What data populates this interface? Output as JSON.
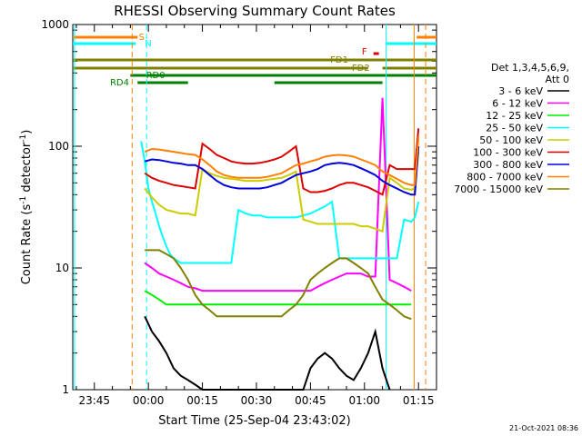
{
  "chart_data": {
    "type": "line",
    "title": "RHESSI Observing Summary Count Rates",
    "xlabel": "Start Time (25-Sep-04 23:43:02)",
    "ylabel": "Count Rate (s",
    "ylabel_exp": "-1",
    "ylabel_tail": " detector",
    "ylabel_exp2": "-1",
    "ylabel_close": ")",
    "yscale": "log",
    "ylim": [
      1,
      1000
    ],
    "xlim_minutes": [
      -6,
      95
    ],
    "x_ticks": [
      {
        "m": 0,
        "label": "23:45"
      },
      {
        "m": 15,
        "label": "00:00"
      },
      {
        "m": 30,
        "label": "00:15"
      },
      {
        "m": 45,
        "label": "00:30"
      },
      {
        "m": 60,
        "label": "00:45"
      },
      {
        "m": 75,
        "label": "01:00"
      },
      {
        "m": 90,
        "label": "01:15"
      }
    ],
    "y_ticks": [
      {
        "v": 1,
        "label": "1"
      },
      {
        "v": 10,
        "label": "10"
      },
      {
        "v": 100,
        "label": "100"
      },
      {
        "v": 1000,
        "label": "1000"
      }
    ],
    "legend_header1": "Det 1,3,4,5,6,9,",
    "legend_header2": "Att 0",
    "series": [
      {
        "name": "3 - 6 keV",
        "color": "#000000",
        "x": [
          14,
          16,
          18,
          20,
          22,
          24,
          26,
          28,
          30,
          32,
          34,
          36,
          38,
          40,
          42,
          44,
          46,
          48,
          50,
          52,
          54,
          56,
          58,
          60,
          62,
          64,
          66,
          68,
          70,
          72,
          74,
          76,
          78,
          80,
          82
        ],
        "y": [
          4,
          3,
          2.5,
          2,
          1.5,
          1.3,
          1.2,
          1.1,
          1,
          1,
          1,
          1,
          1,
          1,
          1,
          1,
          1,
          1,
          1,
          1,
          1,
          1,
          1,
          1.5,
          1.8,
          2,
          1.8,
          1.5,
          1.3,
          1.2,
          1.5,
          2,
          3,
          1.5,
          1
        ]
      },
      {
        "name": "6 - 12 keV",
        "color": "#ff00ff",
        "x": [
          14,
          16,
          18,
          20,
          22,
          24,
          26,
          28,
          30,
          32,
          34,
          36,
          38,
          40,
          42,
          44,
          46,
          48,
          50,
          52,
          54,
          56,
          58,
          60,
          62,
          64,
          66,
          68,
          70,
          72,
          74,
          76,
          78,
          80,
          82,
          84,
          86,
          88
        ],
        "y": [
          11,
          10,
          9,
          8.5,
          8,
          7.5,
          7,
          6.8,
          6.5,
          6.5,
          6.5,
          6.5,
          6.5,
          6.5,
          6.5,
          6.5,
          6.5,
          6.5,
          6.5,
          6.5,
          6.5,
          6.5,
          6.5,
          6.5,
          7,
          7.5,
          8,
          8.5,
          9,
          9,
          9,
          8.5,
          8.5,
          250,
          8,
          7.5,
          7,
          6.5
        ]
      },
      {
        "name": "12 - 25 keV",
        "color": "#00ee00",
        "x": [
          14,
          16,
          18,
          20,
          22,
          24,
          26,
          28,
          30,
          32,
          34,
          36,
          38,
          40,
          42,
          44,
          46,
          48,
          50,
          52,
          54,
          56,
          58,
          60,
          62,
          64,
          66,
          68,
          70,
          72,
          74,
          76,
          78,
          80,
          82,
          84,
          86,
          88
        ],
        "y": [
          6.5,
          6,
          5.5,
          5,
          5,
          5,
          5,
          5,
          5,
          5,
          5,
          5,
          5,
          5,
          5,
          5,
          5,
          5,
          5,
          5,
          5,
          5,
          5,
          5,
          5,
          5,
          5,
          5,
          5,
          5,
          5,
          5,
          5,
          5,
          5,
          5,
          5,
          5
        ]
      },
      {
        "name": "25 - 50 keV",
        "color": "#00ffff",
        "x": [
          13,
          14,
          15,
          16,
          17,
          18,
          19,
          20,
          21,
          22,
          24,
          26,
          28,
          30,
          32,
          34,
          36,
          38,
          40,
          42,
          44,
          46,
          48,
          50,
          52,
          54,
          56,
          58,
          60,
          62,
          64,
          66,
          68,
          70,
          72,
          74,
          76,
          78,
          80,
          82,
          84,
          86,
          88,
          89,
          90
        ],
        "y": [
          110,
          75,
          45,
          35,
          28,
          22,
          18,
          15,
          13,
          12,
          11,
          11,
          11,
          11,
          11,
          11,
          11,
          11,
          30,
          28,
          27,
          27,
          26,
          26,
          26,
          26,
          26,
          27,
          28,
          30,
          32,
          35,
          12,
          12,
          12,
          12,
          12,
          12,
          12,
          12,
          12,
          25,
          24,
          26,
          35
        ]
      },
      {
        "name": "50 - 100 keV",
        "color": "#cccc00",
        "x": [
          14,
          16,
          18,
          20,
          22,
          24,
          26,
          28,
          30,
          32,
          34,
          36,
          38,
          40,
          42,
          44,
          46,
          48,
          50,
          52,
          54,
          56,
          58,
          60,
          62,
          64,
          66,
          68,
          70,
          72,
          74,
          76,
          78,
          80,
          82,
          84,
          86,
          88,
          89,
          90
        ],
        "y": [
          45,
          38,
          33,
          30,
          29,
          28,
          28,
          27,
          65,
          60,
          57,
          55,
          54,
          53,
          52,
          52,
          52,
          53,
          54,
          55,
          58,
          62,
          25,
          24,
          23,
          23,
          23,
          23,
          23,
          23,
          22,
          22,
          21,
          20,
          55,
          50,
          45,
          44,
          45,
          90
        ]
      },
      {
        "name": "100 - 300 keV",
        "color": "#dd0000",
        "x": [
          14,
          16,
          18,
          20,
          22,
          24,
          26,
          28,
          30,
          32,
          34,
          36,
          38,
          40,
          42,
          44,
          46,
          48,
          50,
          52,
          54,
          56,
          58,
          60,
          62,
          64,
          66,
          68,
          70,
          72,
          74,
          76,
          78,
          80,
          82,
          84,
          86,
          88,
          89,
          90
        ],
        "y": [
          60,
          55,
          52,
          50,
          48,
          47,
          46,
          45,
          105,
          95,
          85,
          80,
          75,
          73,
          72,
          72,
          73,
          75,
          78,
          82,
          90,
          100,
          45,
          42,
          42,
          43,
          45,
          48,
          50,
          50,
          48,
          46,
          43,
          40,
          70,
          65,
          65,
          65,
          65,
          140
        ]
      },
      {
        "name": "300 - 800 keV",
        "color": "#0000dd",
        "x": [
          14,
          16,
          18,
          20,
          22,
          24,
          26,
          28,
          30,
          32,
          34,
          36,
          38,
          40,
          42,
          44,
          46,
          48,
          50,
          52,
          54,
          56,
          58,
          60,
          62,
          64,
          66,
          68,
          70,
          72,
          74,
          76,
          78,
          80,
          82,
          84,
          86,
          88,
          89,
          90
        ],
        "y": [
          75,
          78,
          77,
          75,
          73,
          72,
          70,
          70,
          65,
          58,
          52,
          48,
          46,
          45,
          45,
          45,
          45,
          46,
          48,
          50,
          54,
          58,
          60,
          62,
          65,
          70,
          72,
          73,
          72,
          70,
          66,
          62,
          58,
          52,
          48,
          45,
          42,
          40,
          40,
          100
        ]
      },
      {
        "name": "800 - 7000 keV",
        "color": "#ff8000",
        "x": [
          14,
          16,
          18,
          20,
          22,
          24,
          26,
          28,
          30,
          32,
          34,
          36,
          38,
          40,
          42,
          44,
          46,
          48,
          50,
          52,
          54,
          56,
          58,
          60,
          62,
          64,
          66,
          68,
          70,
          72,
          74,
          76,
          78,
          80,
          82,
          84,
          86,
          88,
          89,
          90
        ],
        "y": [
          90,
          95,
          94,
          92,
          90,
          88,
          86,
          85,
          78,
          70,
          62,
          58,
          56,
          55,
          55,
          55,
          55,
          56,
          58,
          60,
          65,
          70,
          72,
          75,
          78,
          82,
          84,
          85,
          84,
          82,
          78,
          74,
          70,
          62,
          58,
          54,
          50,
          48,
          48,
          120
        ]
      },
      {
        "name": "7000 - 15000 keV",
        "color": "#808000",
        "x": [
          14,
          16,
          18,
          20,
          22,
          24,
          26,
          28,
          30,
          32,
          34,
          36,
          38,
          40,
          42,
          44,
          46,
          48,
          50,
          52,
          54,
          56,
          58,
          60,
          62,
          64,
          66,
          68,
          70,
          72,
          74,
          76,
          78,
          80,
          82,
          84,
          86,
          88
        ],
        "y": [
          14,
          14,
          14,
          13,
          12,
          10,
          8,
          6,
          5,
          4.5,
          4,
          4,
          4,
          4,
          4,
          4,
          4,
          4,
          4,
          4,
          4.5,
          5,
          6,
          8,
          9,
          10,
          11,
          12,
          12,
          11,
          10,
          9,
          7,
          5.5,
          5,
          4.5,
          4,
          3.8
        ]
      }
    ],
    "flags": [
      {
        "label": "FD1",
        "color": "#808000"
      },
      {
        "label": "FD2",
        "color": "#808000"
      },
      {
        "label": "RD0",
        "color": "#008000"
      },
      {
        "label": "RD4",
        "color": "#008000"
      },
      {
        "label": "S",
        "color": "#ff8000"
      },
      {
        "label": "N",
        "color": "#00ffff"
      },
      {
        "label": "F",
        "color": "#dd0000"
      }
    ],
    "footer": "21-Oct-2021 08:36"
  }
}
